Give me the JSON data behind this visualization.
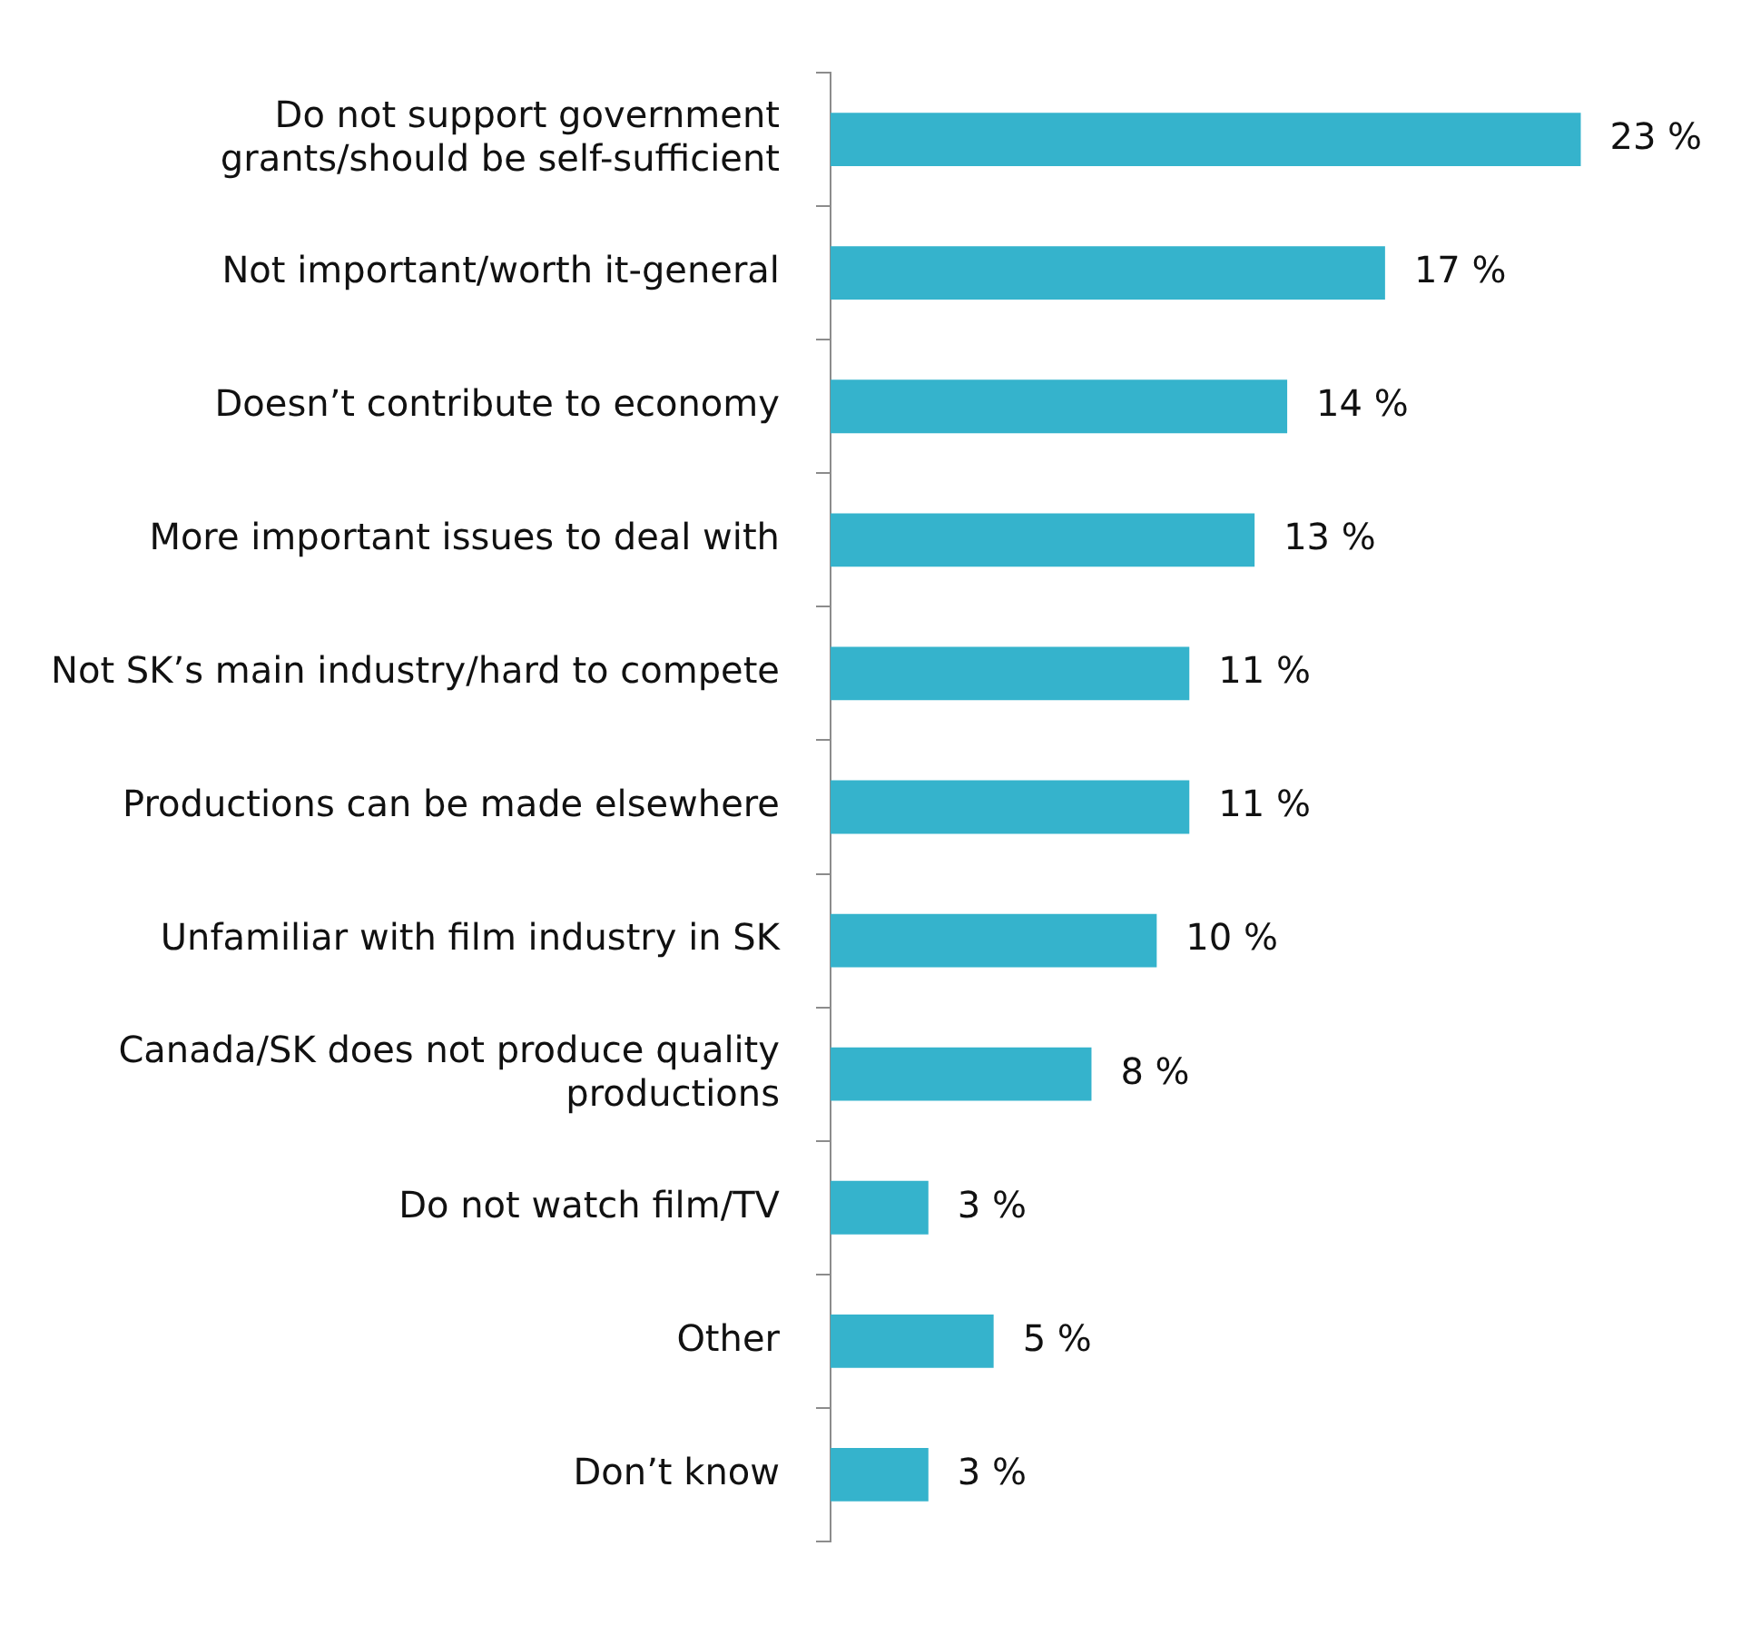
{
  "chart_data": {
    "type": "bar",
    "orientation": "horizontal",
    "categories": [
      "Do not support government grants/should be self-sufficient",
      "Not important/worth it-general",
      "Doesn’t contribute to economy",
      "More important issues to deal with",
      "Not SK’s main industry/hard to compete",
      "Productions can be made elsewhere",
      "Unfamiliar with film industry in SK",
      "Canada/SK does not produce quality productions",
      "Do not watch film/TV",
      "Other",
      "Don’t know"
    ],
    "values": [
      23,
      17,
      14,
      13,
      11,
      11,
      10,
      8,
      3,
      5,
      3
    ],
    "value_labels": [
      "23 %",
      "17 %",
      "14 %",
      "13 %",
      "11 %",
      "11 %",
      "10 %",
      "8 %",
      "3 %",
      "5 %",
      "3 %"
    ],
    "color": "#35b3cc",
    "legend": false
  }
}
